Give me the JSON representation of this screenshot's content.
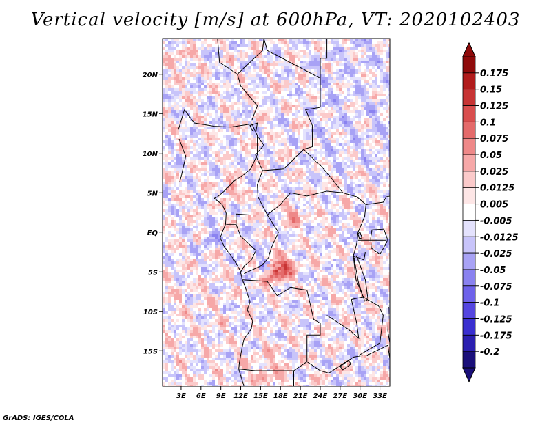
{
  "title": "Vertical velocity [m/s] at 600hPa, VT: 2020102403",
  "credit": "GrADS: IGES/COLA",
  "colors": {
    "levels": [
      "#1a0f7a",
      "#2b1fb0",
      "#3a2fd0",
      "#5546e0",
      "#6e62ea",
      "#8a82f0",
      "#a8a2f5",
      "#c8c4fa",
      "#e4e2fd",
      "#ffffff",
      "#fde6e6",
      "#fbcaca",
      "#f6a8a8",
      "#ee8888",
      "#e46a6a",
      "#d94e4e",
      "#c73434",
      "#b11c1c",
      "#8f0b0b"
    ]
  },
  "chart_data": {
    "type": "heatmap",
    "title": "Vertical velocity [m/s] at 600hPa, VT: 2020102403",
    "variable": "Vertical velocity",
    "units": "m/s",
    "level": "600hPa",
    "valid_time": "2020102403",
    "x_ticks": [
      "3E",
      "6E",
      "9E",
      "12E",
      "15E",
      "18E",
      "21E",
      "24E",
      "27E",
      "30E",
      "33E"
    ],
    "x_tick_values": [
      3,
      6,
      9,
      12,
      15,
      18,
      21,
      24,
      27,
      30,
      33
    ],
    "y_ticks": [
      "20N",
      "15N",
      "10N",
      "5N",
      "EQ",
      "5S",
      "10S",
      "15S"
    ],
    "y_tick_values": [
      20,
      15,
      10,
      5,
      0,
      -5,
      -10,
      -15
    ],
    "xlim": [
      0.2,
      34.5
    ],
    "ylim": [
      -19.5,
      24.5
    ],
    "colorbar": {
      "labels": [
        "0.175",
        "0.15",
        "0.125",
        "0.1",
        "0.075",
        "0.05",
        "0.025",
        "0.0125",
        "0.005",
        "-0.005",
        "-0.0125",
        "-0.025",
        "-0.05",
        "-0.075",
        "-0.1",
        "-0.125",
        "-0.175",
        "-0.2"
      ],
      "values": [
        0.175,
        0.15,
        0.125,
        0.1,
        0.075,
        0.05,
        0.025,
        0.0125,
        0.005,
        -0.005,
        -0.0125,
        -0.025,
        -0.05,
        -0.075,
        -0.1,
        -0.125,
        -0.175,
        -0.2
      ]
    }
  }
}
